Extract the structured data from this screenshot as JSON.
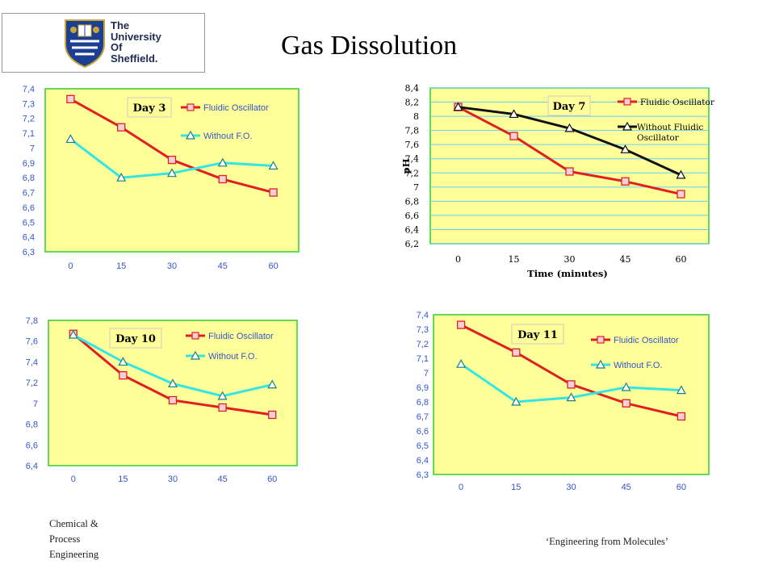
{
  "slide": {
    "title": "Gas Dissolution",
    "logo": {
      "line1": "The",
      "line2": "University",
      "line3": "Of",
      "line4": "Sheffield."
    },
    "footer_left": [
      "Chemical &",
      "Process",
      "Engineering"
    ],
    "footer_right": "‘Engineering from Molecules’"
  },
  "colors": {
    "plot_bg": "#ffff99",
    "plot_border": "#33cc33",
    "fluidic": "#e02020",
    "without_fo": "#33e5e5",
    "without_fluidic_day7": "#111111",
    "grid": "#66ccff",
    "tick_text": "#3355cc"
  },
  "chart_data": [
    {
      "type": "line",
      "label": "Day 3",
      "categories": [
        "0",
        "15",
        "30",
        "45",
        "60"
      ],
      "x": [
        0,
        15,
        30,
        45,
        60
      ],
      "ylim": [
        6.3,
        7.4
      ],
      "yticks": [
        "6,3",
        "6,4",
        "6,5",
        "6,6",
        "6,7",
        "6,8",
        "6,9",
        "7",
        "7,1",
        "7,2",
        "7,3",
        "7,4"
      ],
      "series": [
        {
          "name": "Fluidic Oscillator",
          "values": [
            7.33,
            7.14,
            6.92,
            6.79,
            6.7
          ]
        },
        {
          "name": "Without F.O.",
          "values": [
            7.06,
            6.8,
            6.83,
            6.9,
            6.88
          ]
        }
      ],
      "xlabel": "",
      "ylabel": "",
      "grid": false
    },
    {
      "type": "line",
      "label": "Day 7",
      "categories": [
        "0",
        "15",
        "30",
        "45",
        "60"
      ],
      "x": [
        0,
        15,
        30,
        45,
        60
      ],
      "ylim": [
        6.2,
        8.4
      ],
      "yticks": [
        "6,2",
        "6,4",
        "6,6",
        "6,8",
        "7",
        "7,2",
        "7,4",
        "7,6",
        "7,8",
        "8",
        "8,2",
        "8,4"
      ],
      "series": [
        {
          "name": "Fluidic Oscillator",
          "values": [
            8.13,
            7.72,
            7.22,
            7.08,
            6.9
          ]
        },
        {
          "name": "Without Fluidic Oscillator",
          "values": [
            8.13,
            8.03,
            7.83,
            7.53,
            7.17
          ]
        }
      ],
      "xlabel": "Time (minutes)",
      "ylabel": "pH",
      "grid": true
    },
    {
      "type": "line",
      "label": "Day 10",
      "categories": [
        "0",
        "15",
        "30",
        "45",
        "60"
      ],
      "x": [
        0,
        15,
        30,
        45,
        60
      ],
      "ylim": [
        6.4,
        7.8
      ],
      "yticks": [
        "6,4",
        "6,6",
        "6,8",
        "7",
        "7,2",
        "7,4",
        "7,6",
        "7,8"
      ],
      "series": [
        {
          "name": "Fluidic Oscillator",
          "values": [
            7.67,
            7.27,
            7.03,
            6.96,
            6.89
          ]
        },
        {
          "name": "Without F.O.",
          "values": [
            7.66,
            7.4,
            7.19,
            7.07,
            7.18
          ]
        }
      ],
      "xlabel": "",
      "ylabel": "",
      "grid": false
    },
    {
      "type": "line",
      "label": "Day 11",
      "categories": [
        "0",
        "15",
        "30",
        "45",
        "60"
      ],
      "x": [
        0,
        15,
        30,
        45,
        60
      ],
      "ylim": [
        6.3,
        7.4
      ],
      "yticks": [
        "6,3",
        "6,4",
        "6,5",
        "6,6",
        "6,7",
        "6,8",
        "6,9",
        "7",
        "7,1",
        "7,2",
        "7,3",
        "7,4"
      ],
      "series": [
        {
          "name": "Fluidic Oscillator",
          "values": [
            7.33,
            7.14,
            6.92,
            6.79,
            6.7
          ]
        },
        {
          "name": "Without F.O.",
          "values": [
            7.06,
            6.8,
            6.83,
            6.9,
            6.88
          ]
        }
      ],
      "xlabel": "",
      "ylabel": "",
      "grid": false
    }
  ]
}
